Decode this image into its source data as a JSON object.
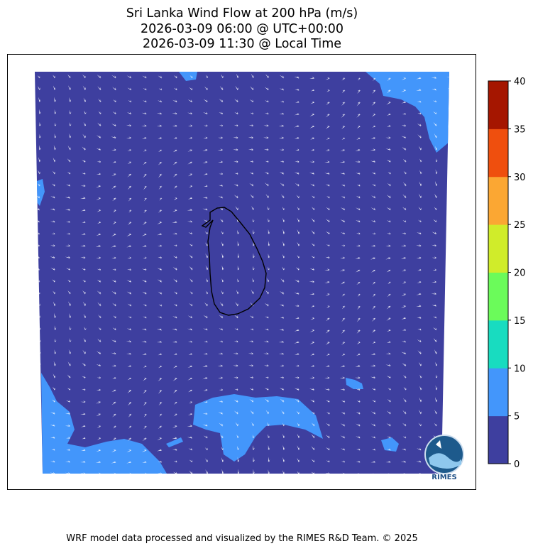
{
  "title": {
    "line1": "Sri Lanka Wind Flow at 200 hPa (m/s)",
    "line2": "2026-03-09 06:00 @ UTC+00:00",
    "line3": "2026-03-09 11:30 @ Local Time"
  },
  "chart_data": {
    "type": "heatmap",
    "variable": "wind speed with direction arrows",
    "colorbar": {
      "ticks": [
        "0",
        "5",
        "10",
        "15",
        "20",
        "25",
        "30",
        "35",
        "40"
      ],
      "levels": [
        0,
        5,
        10,
        15,
        20,
        25,
        30,
        35,
        40
      ],
      "colors": [
        "#3e3f9f",
        "#4396fb",
        "#18dcc0",
        "#6bfb5a",
        "#d0ec2a",
        "#fba733",
        "#ef4f0e",
        "#a51600"
      ]
    },
    "field_colors": {
      "calm": "#3e3f9f",
      "5-10": "#4396fb",
      "coastline": "#000000",
      "arrows": "#ffffff"
    }
  },
  "logo": {
    "text": "RIMES"
  },
  "footer": "WRF model data processed and visualized by the RIMES R&D Team. © 2025"
}
